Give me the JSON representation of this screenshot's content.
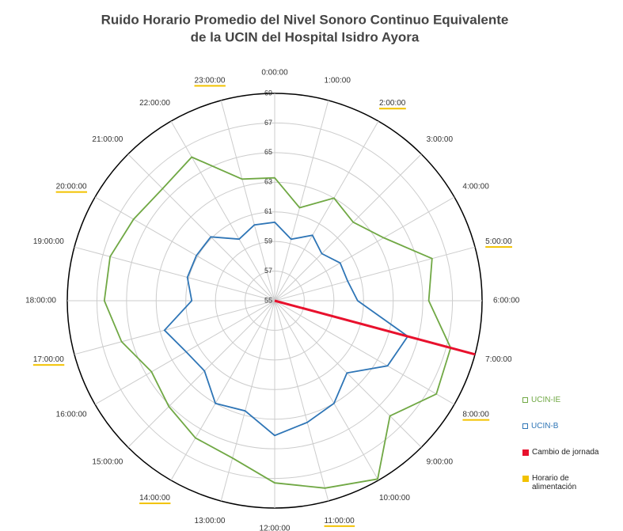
{
  "chart_data": {
    "type": "radar",
    "title": [
      "Ruido Horario Promedio del Nivel Sonoro Continuo Equivalente",
      "de la UCIN del Hospital Isidro Ayora"
    ],
    "categories": [
      "0:00:00",
      "1:00:00",
      "2:00:00",
      "3:00:00",
      "4:00:00",
      "5:00:00",
      "6:00:00",
      "7:00:00",
      "8:00:00",
      "9:00:00",
      "10:00:00",
      "11:00:00",
      "12:00:00",
      "13:00:00",
      "14:00:00",
      "15:00:00",
      "16:00:00",
      "17:00:00",
      "18:00:00",
      "19:00:00",
      "20:00:00",
      "21:00:00",
      "22:00:00",
      "23:00:00"
    ],
    "ylim": [
      55,
      69
    ],
    "yticks": [
      55,
      57,
      59,
      61,
      63,
      65,
      67,
      69
    ],
    "grid": true,
    "series": [
      {
        "name": "UCIN-IE",
        "color": "#70a844",
        "values": [
          63.3,
          61.5,
          63.0,
          62.5,
          63.5,
          66.0,
          65.4,
          67.3,
          67.6,
          66.0,
          68.9,
          68.1,
          67.3,
          66.0,
          65.7,
          65.1,
          64.6,
          65.7,
          66.5,
          66.5,
          66.0,
          65.7,
          66.2,
          63.5
        ]
      },
      {
        "name": "UCIN-B",
        "color": "#2e75b6",
        "values": [
          60.3,
          59.3,
          60.1,
          59.5,
          60.1,
          60.1,
          60.6,
          64.3,
          63.8,
          61.9,
          63.0,
          63.5,
          64.1,
          62.7,
          63.0,
          61.7,
          61.9,
          62.7,
          60.6,
          61.1,
          61.1,
          61.1,
          59.8,
          60.3
        ]
      }
    ],
    "marker": {
      "name": "Cambio de jornada",
      "color": "#e8112d",
      "category": "7:00:00"
    },
    "highlight": {
      "name": "Horario de alimentación",
      "color": "#f2c200",
      "categories": [
        "2:00:00",
        "5:00:00",
        "8:00:00",
        "11:00:00",
        "14:00:00",
        "17:00:00",
        "20:00:00",
        "23:00:00"
      ]
    }
  }
}
